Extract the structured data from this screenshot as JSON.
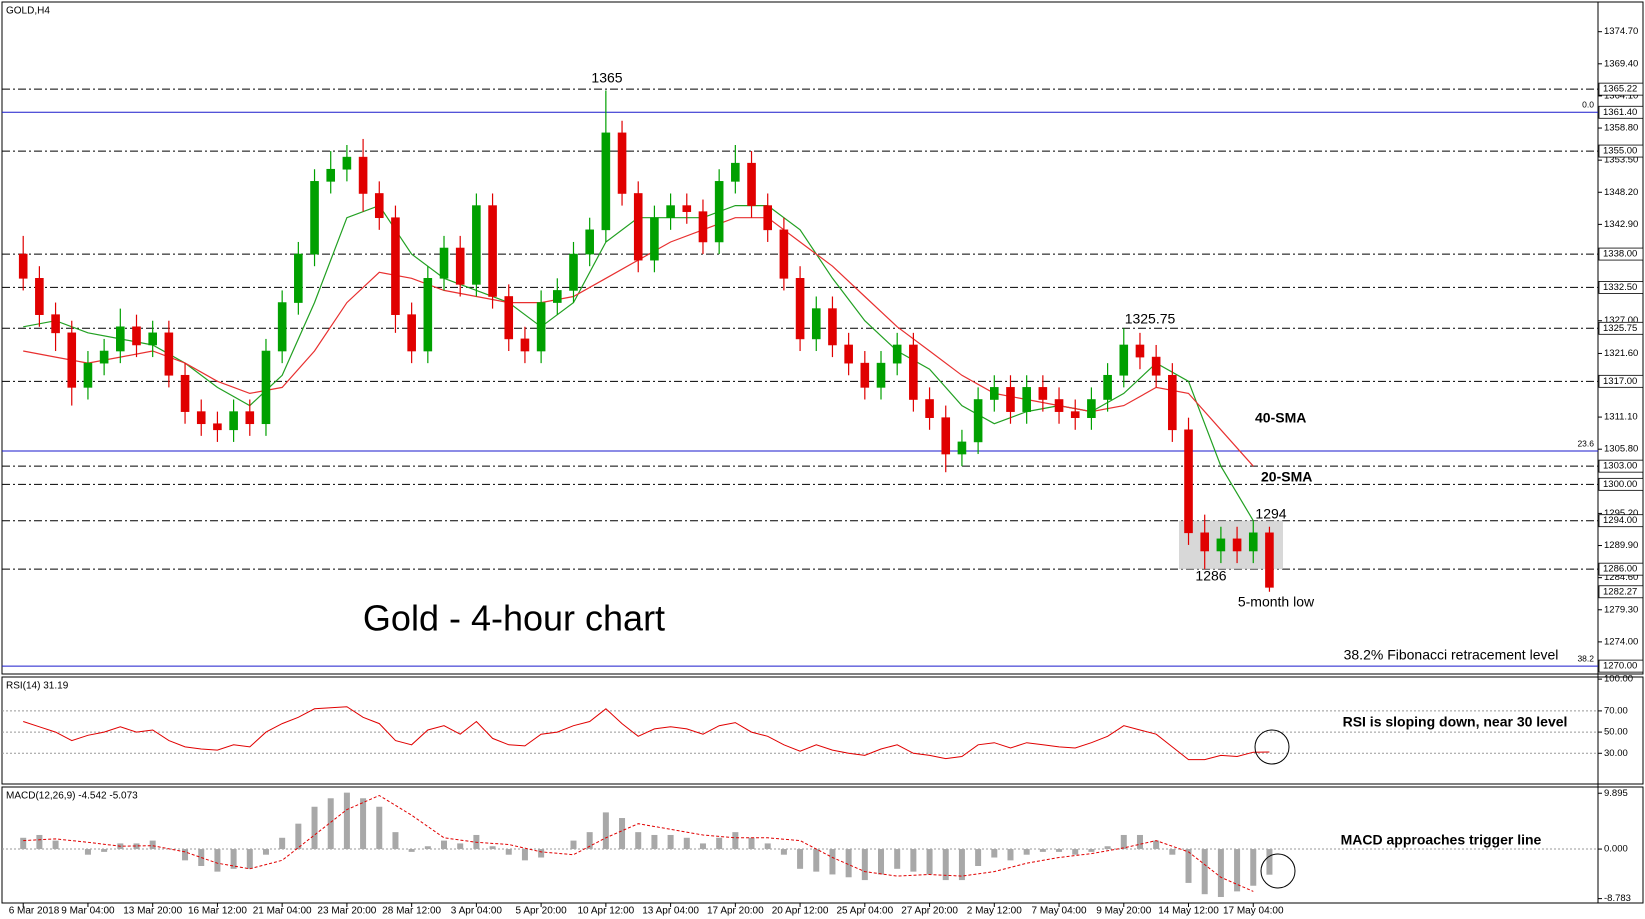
{
  "chart_data": [
    {
      "type": "candlestick",
      "title": "GOLD,H4",
      "up_color": "#00a000",
      "down_color": "#e00000",
      "xlim": [
        -1.31,
        97.3
      ],
      "ylim": [
        1268.7,
        1379.6
      ],
      "open": [
        1338,
        1334,
        1328,
        1325,
        1316,
        1320,
        1322,
        1326,
        1323,
        1325,
        1318,
        1312,
        1310,
        1309,
        1312,
        1310,
        1322,
        1330,
        1338,
        1350,
        1352,
        1354,
        1348,
        1344,
        1328,
        1322,
        1334,
        1339,
        1333,
        1346,
        1331,
        1324,
        1322,
        1330,
        1332,
        1338,
        1342,
        1358,
        1348,
        1337,
        1344,
        1346,
        1345,
        1340,
        1350,
        1353,
        1346,
        1342,
        1334,
        1324,
        1329,
        1323,
        1320,
        1316,
        1320,
        1323,
        1314,
        1311,
        1305,
        1307,
        1314,
        1316,
        1312,
        1316,
        1314,
        1312,
        1311,
        1314,
        1318,
        1323,
        1321,
        1318,
        1309,
        1292,
        1289,
        1291,
        1289,
        1292
      ],
      "high": [
        1341,
        1336,
        1330,
        1327,
        1322,
        1324,
        1329,
        1328,
        1327,
        1327,
        1320,
        1314,
        1312,
        1314,
        1314,
        1324,
        1332,
        1340,
        1352,
        1355,
        1356,
        1357,
        1350,
        1346,
        1330,
        1336,
        1341,
        1341,
        1348,
        1348,
        1333,
        1326,
        1332,
        1334,
        1340,
        1344,
        1365,
        1360,
        1350,
        1346,
        1348,
        1348,
        1347,
        1352,
        1356,
        1355,
        1348,
        1344,
        1336,
        1331,
        1331,
        1325,
        1322,
        1322,
        1325,
        1325,
        1316,
        1313,
        1309,
        1316,
        1318,
        1318,
        1318,
        1318,
        1316,
        1314,
        1316,
        1320,
        1325.75,
        1325,
        1323,
        1320,
        1311,
        1295,
        1293,
        1293,
        1294,
        1293
      ],
      "low": [
        1332,
        1326,
        1322,
        1313,
        1314,
        1318,
        1320,
        1321,
        1321,
        1316,
        1310,
        1308,
        1307,
        1307,
        1308,
        1308,
        1320,
        1328,
        1336,
        1348,
        1350,
        1345,
        1342,
        1325,
        1320,
        1320,
        1332,
        1331,
        1331,
        1329,
        1322,
        1320,
        1320,
        1328,
        1330,
        1336,
        1340,
        1346,
        1335,
        1335,
        1342,
        1343,
        1338,
        1338,
        1348,
        1344,
        1340,
        1332,
        1322,
        1322,
        1321,
        1318,
        1314,
        1314,
        1318,
        1312,
        1309,
        1302,
        1303,
        1305,
        1312,
        1310,
        1310,
        1312,
        1310,
        1309,
        1309,
        1312,
        1316,
        1319,
        1316,
        1307,
        1290,
        1286,
        1287,
        1287,
        1287,
        1282.27
      ],
      "close": [
        1334,
        1328,
        1325,
        1316,
        1320,
        1322,
        1326,
        1323,
        1325,
        1318,
        1312,
        1310,
        1309,
        1312,
        1310,
        1322,
        1330,
        1338,
        1350,
        1352,
        1354,
        1348,
        1344,
        1328,
        1322,
        1334,
        1339,
        1333,
        1346,
        1331,
        1324,
        1322,
        1330,
        1332,
        1338,
        1342,
        1358,
        1348,
        1337,
        1344,
        1346,
        1345,
        1340,
        1350,
        1353,
        1346,
        1342,
        1334,
        1324,
        1329,
        1323,
        1320,
        1316,
        1320,
        1323,
        1314,
        1311,
        1305,
        1307,
        1314,
        1316,
        1312,
        1316,
        1314,
        1312,
        1311,
        1314,
        1318,
        1323,
        1321,
        1318,
        1309,
        1292,
        1289,
        1291,
        1289,
        1292,
        1283
      ],
      "lines": [
        {
          "name": "20-SMA",
          "color": "#22a022",
          "x": [
            0,
            2,
            4,
            6,
            8,
            10,
            12,
            14,
            16,
            18,
            20,
            22,
            24,
            26,
            28,
            30,
            32,
            34,
            36,
            38,
            40,
            42,
            44,
            46,
            48,
            50,
            52,
            54,
            56,
            58,
            60,
            62,
            64,
            66,
            68,
            70,
            72,
            74,
            76
          ],
          "values": [
            1326,
            1327,
            1325,
            1324,
            1323,
            1320,
            1316,
            1313,
            1318,
            1330,
            1344,
            1346,
            1338,
            1334,
            1332,
            1330,
            1326,
            1330,
            1340,
            1344,
            1344,
            1344,
            1346,
            1346,
            1342,
            1334,
            1327,
            1322,
            1319,
            1313,
            1310,
            1312,
            1313,
            1312,
            1315,
            1320,
            1317,
            1303,
            1294
          ]
        },
        {
          "name": "40-SMA",
          "color": "#e83030",
          "x": [
            0,
            2,
            4,
            6,
            8,
            10,
            12,
            14,
            16,
            18,
            20,
            22,
            24,
            26,
            28,
            30,
            32,
            34,
            36,
            38,
            40,
            42,
            44,
            46,
            48,
            50,
            52,
            54,
            56,
            58,
            60,
            62,
            64,
            66,
            68,
            70,
            72,
            74,
            76
          ],
          "values": [
            1322,
            1321,
            1320,
            1321,
            1322,
            1320,
            1317,
            1315,
            1316,
            1322,
            1330,
            1335,
            1334,
            1332,
            1331,
            1330,
            1330,
            1331,
            1334,
            1337,
            1340,
            1342,
            1344,
            1344,
            1340,
            1336,
            1331,
            1326,
            1322,
            1318,
            1315,
            1314,
            1313,
            1312,
            1313,
            1316,
            1315,
            1309,
            1303
          ]
        }
      ],
      "levels": [
        {
          "value": 1365.22,
          "label": "1365.22",
          "line": true
        },
        {
          "value": 1361.4,
          "label": "1361.40",
          "line": false
        },
        {
          "value": 1355,
          "label": "1355.00",
          "line": true
        },
        {
          "value": 1338,
          "label": "1338.00",
          "line": true
        },
        {
          "value": 1332.5,
          "label": "1332.50",
          "line": true
        },
        {
          "value": 1325.75,
          "label": "1325.75",
          "line": true
        },
        {
          "value": 1317,
          "label": "1317.00",
          "line": true
        },
        {
          "value": 1303,
          "label": "1303.00",
          "line": true
        },
        {
          "value": 1300,
          "label": "1300.00",
          "line": true
        },
        {
          "value": 1294,
          "label": "1294.00",
          "line": true
        },
        {
          "value": 1286,
          "label": "1286.00",
          "line": true
        },
        {
          "value": 1282.27,
          "label": "1282.27",
          "line": false
        },
        {
          "value": 1270,
          "label": "1270.00",
          "line": false
        }
      ],
      "fib_color": "#1a1acc",
      "fib_levels": [
        {
          "value": 1361.4,
          "label": "0.0"
        },
        {
          "value": 1305.5,
          "label": "23.6"
        },
        {
          "value": 1270,
          "label": "38.2"
        }
      ],
      "yticks": [
        {
          "value": 1374.7,
          "label": "1374.70"
        },
        {
          "value": 1369.4,
          "label": "1369.40"
        },
        {
          "value": 1364.1,
          "label": "1364.10"
        },
        {
          "value": 1358.8,
          "label": "1358.80"
        },
        {
          "value": 1353.5,
          "label": "1353.50"
        },
        {
          "value": 1348.2,
          "label": "1348.20"
        },
        {
          "value": 1342.9,
          "label": "1342.90"
        },
        {
          "value": 1327,
          "label": "1327.00"
        },
        {
          "value": 1321.6,
          "label": "1321.60"
        },
        {
          "value": 1311.1,
          "label": "1311.10"
        },
        {
          "value": 1305.8,
          "label": "1305.80"
        },
        {
          "value": 1295.2,
          "label": "1295.20"
        },
        {
          "value": 1289.9,
          "label": "1289.90"
        },
        {
          "value": 1284.6,
          "label": "1284.60"
        },
        {
          "value": 1279.3,
          "label": "1279.30"
        },
        {
          "value": 1274,
          "label": "1274.00"
        }
      ],
      "annotations": [
        "1365",
        "1325.75",
        "1294",
        "1286",
        "5-month low",
        "Gold - 4-hour chart",
        "38.2% Fibonacci retracement level"
      ]
    },
    {
      "type": "line",
      "title": "RSI(14) 31.19",
      "color": "#e00000",
      "xlim": [
        -1.31,
        97.3
      ],
      "ylim": [
        1,
        102
      ],
      "values": [
        60,
        55,
        50,
        42,
        47,
        50,
        55,
        50,
        52,
        42,
        36,
        34,
        33,
        38,
        36,
        50,
        58,
        64,
        72,
        73,
        74,
        64,
        58,
        42,
        38,
        52,
        56,
        48,
        60,
        44,
        38,
        37,
        48,
        50,
        56,
        60,
        72,
        58,
        46,
        53,
        55,
        53,
        48,
        56,
        59,
        50,
        46,
        38,
        32,
        38,
        33,
        30,
        28,
        34,
        38,
        30,
        28,
        25,
        27,
        38,
        40,
        35,
        40,
        38,
        36,
        35,
        40,
        46,
        56,
        52,
        48,
        36,
        24,
        24,
        28,
        27,
        31,
        31.19
      ],
      "yticks": [
        {
          "value": 100,
          "label": "100.00"
        },
        {
          "value": 70,
          "label": "70.00"
        },
        {
          "value": 50,
          "label": "50.00"
        },
        {
          "value": 30,
          "label": "30.00"
        }
      ],
      "annotation": "RSI is sloping down, near 30 level"
    },
    {
      "type": "macd",
      "title": "MACD(12,26,9) -4.542 -5.073",
      "color": "#a8a8a8",
      "xlim": [
        -1.31,
        97.3
      ],
      "ylim": [
        -9.56,
        11.0
      ],
      "values": [
        2,
        2.5,
        1.5,
        0,
        -1,
        -0.5,
        1,
        1,
        1.5,
        0,
        -2,
        -3,
        -4,
        -3.5,
        -3.5,
        -1,
        2,
        4.5,
        7.5,
        9,
        10,
        9,
        7.5,
        3,
        -0.5,
        0.5,
        1.5,
        1,
        2.5,
        0.5,
        -1,
        -2,
        -1.5,
        0,
        1.5,
        3,
        6.5,
        5.5,
        3,
        2.5,
        2.5,
        2,
        1,
        2,
        3,
        2,
        1,
        -1,
        -3.5,
        -4,
        -4.5,
        -5,
        -5.5,
        -4.5,
        -3.5,
        -4,
        -4.5,
        -5.5,
        -5.5,
        -3,
        -1.5,
        -2,
        -1,
        -0.5,
        -0.5,
        -1,
        -0.5,
        0.5,
        2.5,
        2.5,
        1.5,
        -1,
        -6,
        -8,
        -8.5,
        -7.5,
        -6.5,
        -4.542
      ],
      "signal": {
        "color": "#e00000",
        "x": [
          0,
          2,
          4,
          6,
          8,
          10,
          12,
          14,
          16,
          18,
          20,
          22,
          24,
          26,
          28,
          30,
          32,
          34,
          36,
          38,
          40,
          42,
          44,
          46,
          48,
          50,
          52,
          54,
          56,
          58,
          60,
          62,
          64,
          66,
          68,
          70,
          72,
          74,
          76
        ],
        "values": [
          1.5,
          1.8,
          1.2,
          0.5,
          0.6,
          -0.5,
          -2.5,
          -3.5,
          -2,
          2.5,
          7,
          9.5,
          6,
          2,
          1.2,
          0.8,
          -0.5,
          -1,
          2,
          4.5,
          3.5,
          2.5,
          2,
          2,
          1.5,
          -1.5,
          -4,
          -4.8,
          -4.5,
          -4.8,
          -4,
          -2.5,
          -1.5,
          -0.8,
          0.2,
          1.5,
          -0.5,
          -5,
          -7.5
        ]
      },
      "yticks": [
        9.895,
        {
          "value": 0,
          "label": "0.000"
        },
        -8.783
      ],
      "xticks": [
        {
          "value": 0,
          "label": "6 Mar 2018"
        },
        {
          "value": 4,
          "label": "9 Mar 04:00"
        },
        {
          "value": 8,
          "label": "13 Mar 20:00"
        },
        {
          "value": 12,
          "label": "16 Mar 12:00"
        },
        {
          "value": 16,
          "label": "21 Mar 04:00"
        },
        {
          "value": 20,
          "label": "23 Mar 20:00"
        },
        {
          "value": 24,
          "label": "28 Mar 12:00"
        },
        {
          "value": 28,
          "label": "3 Apr 04:00"
        },
        {
          "value": 32,
          "label": "5 Apr 20:00"
        },
        {
          "value": 36,
          "label": "10 Apr 12:00"
        },
        {
          "value": 40,
          "label": "13 Apr 04:00"
        },
        {
          "value": 44,
          "label": "17 Apr 20:00"
        },
        {
          "value": 48,
          "label": "20 Apr 12:00"
        },
        {
          "value": 52,
          "label": "25 Apr 04:00"
        },
        {
          "value": 56,
          "label": "27 Apr 20:00"
        },
        {
          "value": 60,
          "label": "2 May 12:00"
        },
        {
          "value": 64,
          "label": "7 May 04:00"
        },
        {
          "value": 68,
          "label": "9 May 20:00"
        },
        {
          "value": 72,
          "label": "14 May 12:00"
        },
        {
          "value": 76,
          "label": "17 May 04:00"
        }
      ],
      "annotation": "MACD approaches trigger line"
    }
  ]
}
